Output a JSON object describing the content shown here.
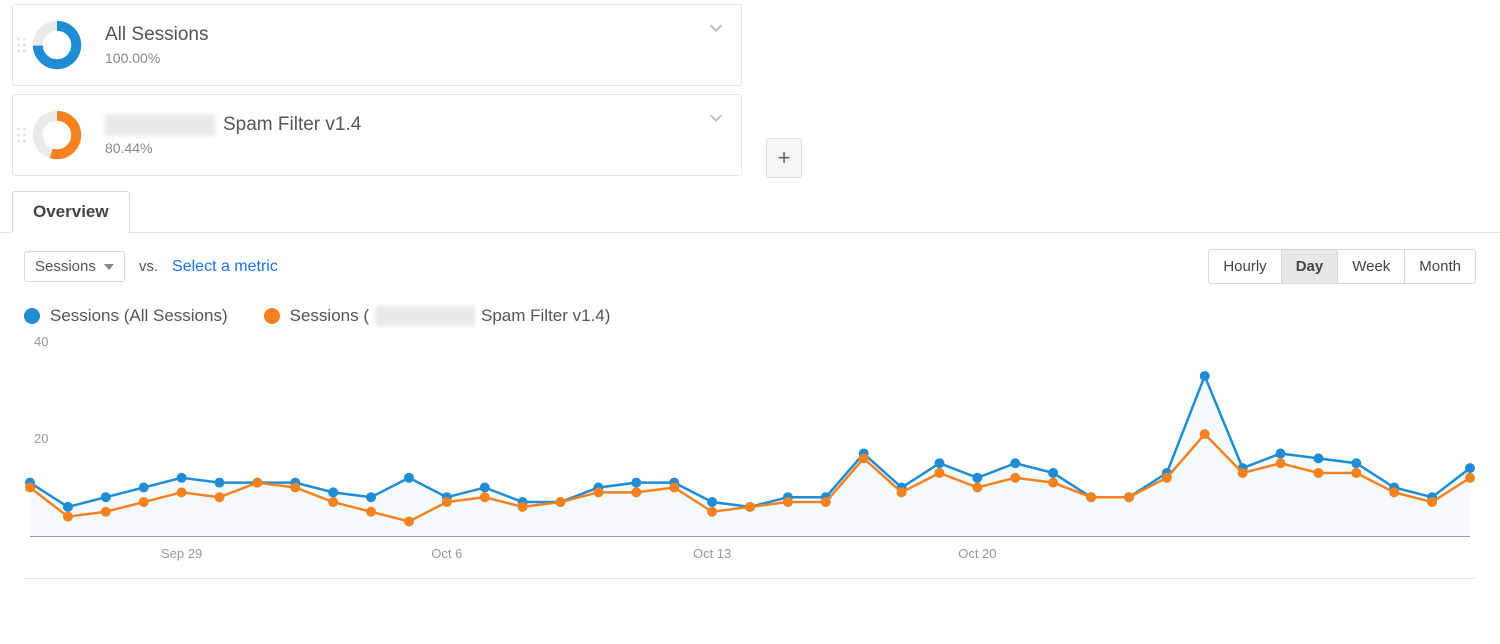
{
  "colors": {
    "blue": "#1f8dd6",
    "orange": "#f58220",
    "area_blue": "#d7ecf7",
    "axis": "#999999",
    "text": "#555555",
    "link": "#1a73e8"
  },
  "segments": [
    {
      "title": "All Sessions",
      "percent": "100.00%",
      "donut_pct": 100,
      "color_key": "blue",
      "redacted_prefix": false
    },
    {
      "title": "Spam Filter v1.4",
      "percent": "80.44%",
      "donut_pct": 80.44,
      "color_key": "orange",
      "redacted_prefix": true
    }
  ],
  "add_button_label": "+",
  "tab_label": "Overview",
  "metric_dropdown": "Sessions",
  "vs_label": "vs.",
  "select_metric_label": "Select a metric",
  "time_toggle": {
    "options": [
      "Hourly",
      "Day",
      "Week",
      "Month"
    ],
    "active": "Day"
  },
  "legend": {
    "series_a_label_prefix": "Sessions (All Sessions)",
    "series_b_label_prefix": "Sessions (",
    "series_b_label_suffix": " Spam Filter v1.4)"
  },
  "chart": {
    "type": "line",
    "ylim": [
      0,
      40
    ],
    "yticks": [
      20,
      40
    ],
    "area_fill_series": "a",
    "xticks": [
      {
        "index": 4,
        "label": "Sep 29"
      },
      {
        "index": 11,
        "label": "Oct 6"
      },
      {
        "index": 18,
        "label": "Oct 13"
      },
      {
        "index": 25,
        "label": "Oct 20"
      }
    ],
    "series": {
      "a": {
        "name": "All Sessions",
        "color_key": "blue",
        "values": [
          11,
          6,
          8,
          10,
          12,
          11,
          11,
          11,
          9,
          8,
          12,
          8,
          10,
          7,
          7,
          10,
          11,
          11,
          7,
          6,
          8,
          8,
          17,
          10,
          15,
          12,
          15,
          13,
          8,
          8,
          13,
          33,
          14,
          17,
          16,
          15,
          10,
          8,
          14
        ]
      },
      "b": {
        "name": "Spam Filter v1.4",
        "color_key": "orange",
        "values": [
          10,
          4,
          5,
          7,
          9,
          8,
          11,
          10,
          7,
          5,
          3,
          7,
          8,
          6,
          7,
          9,
          9,
          10,
          5,
          6,
          7,
          7,
          16,
          9,
          13,
          10,
          12,
          11,
          8,
          8,
          12,
          21,
          13,
          15,
          13,
          13,
          9,
          7,
          12
        ]
      }
    },
    "marker_radius": 5,
    "line_width": 2.5
  }
}
